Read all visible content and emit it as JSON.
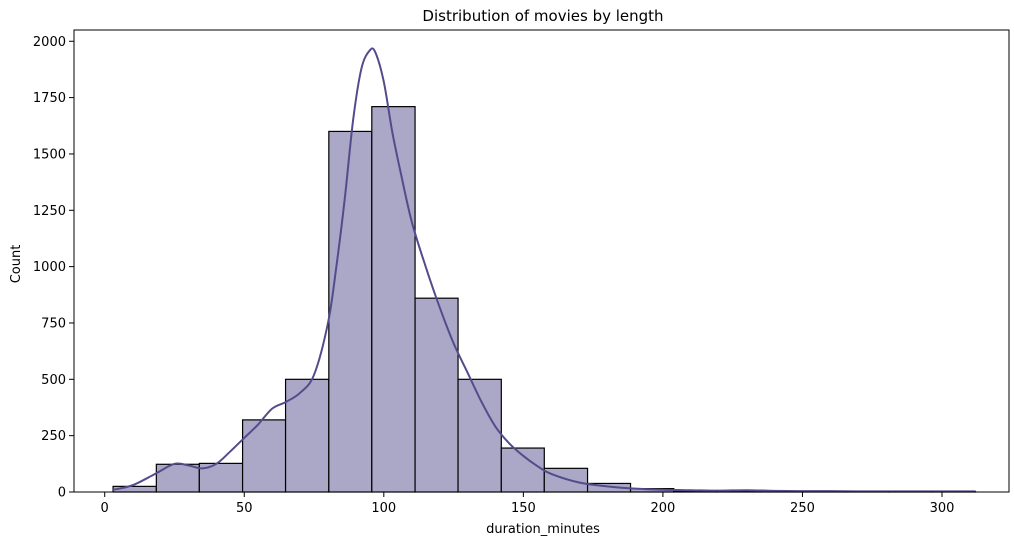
{
  "chart_data": {
    "type": "bar",
    "title": "Distribution of movies by length",
    "xlabel": "duration_minutes",
    "ylabel": "Count",
    "xlim": [
      -11,
      324
    ],
    "ylim": [
      0,
      2050
    ],
    "xticks": [
      0,
      50,
      100,
      150,
      200,
      250,
      300
    ],
    "yticks": [
      0,
      250,
      500,
      750,
      1000,
      1250,
      1500,
      1750,
      2000
    ],
    "grid": false,
    "colors": {
      "bar_fill": "#aba7c6",
      "bar_edge": "#000000",
      "kde_line": "#534c8c"
    },
    "bins": [
      {
        "x0": 3,
        "x1": 18.5,
        "count": 25
      },
      {
        "x0": 18.5,
        "x1": 33.9,
        "count": 123
      },
      {
        "x0": 33.9,
        "x1": 49.4,
        "count": 127
      },
      {
        "x0": 49.4,
        "x1": 64.8,
        "count": 320
      },
      {
        "x0": 64.8,
        "x1": 80.3,
        "count": 500
      },
      {
        "x0": 80.3,
        "x1": 95.7,
        "count": 1600
      },
      {
        "x0": 95.7,
        "x1": 111.2,
        "count": 1710
      },
      {
        "x0": 111.2,
        "x1": 126.6,
        "count": 860
      },
      {
        "x0": 126.6,
        "x1": 142.1,
        "count": 500
      },
      {
        "x0": 142.1,
        "x1": 157.5,
        "count": 195
      },
      {
        "x0": 157.5,
        "x1": 173.0,
        "count": 105
      },
      {
        "x0": 173.0,
        "x1": 188.4,
        "count": 38
      },
      {
        "x0": 188.4,
        "x1": 203.9,
        "count": 15
      },
      {
        "x0": 203.9,
        "x1": 219.3,
        "count": 5
      },
      {
        "x0": 219.3,
        "x1": 234.8,
        "count": 3
      },
      {
        "x0": 234.8,
        "x1": 250.2,
        "count": 2
      },
      {
        "x0": 250.2,
        "x1": 265.7,
        "count": 1
      },
      {
        "x0": 265.7,
        "x1": 281.1,
        "count": 1
      },
      {
        "x0": 281.1,
        "x1": 296.6,
        "count": 1
      },
      {
        "x0": 296.6,
        "x1": 312.0,
        "count": 2
      }
    ],
    "kde": {
      "x": [
        3,
        10,
        18,
        25,
        30,
        35,
        40,
        45,
        50,
        55,
        60,
        65,
        70,
        75,
        80,
        83,
        86,
        89,
        92,
        95,
        97,
        100,
        103,
        106,
        110,
        115,
        120,
        125,
        130,
        135,
        140,
        145,
        150,
        155,
        160,
        170,
        180,
        190,
        200,
        210,
        220,
        230,
        240,
        250,
        260,
        270,
        280,
        290,
        300,
        312
      ],
      "y": [
        10,
        30,
        80,
        125,
        118,
        105,
        125,
        180,
        240,
        300,
        370,
        400,
        440,
        520,
        750,
        1000,
        1300,
        1650,
        1880,
        1960,
        1950,
        1820,
        1600,
        1420,
        1200,
        1000,
        820,
        660,
        530,
        400,
        290,
        215,
        160,
        115,
        80,
        42,
        25,
        15,
        10,
        8,
        6,
        8,
        5,
        4,
        4,
        3,
        3,
        3,
        3,
        3
      ]
    }
  }
}
